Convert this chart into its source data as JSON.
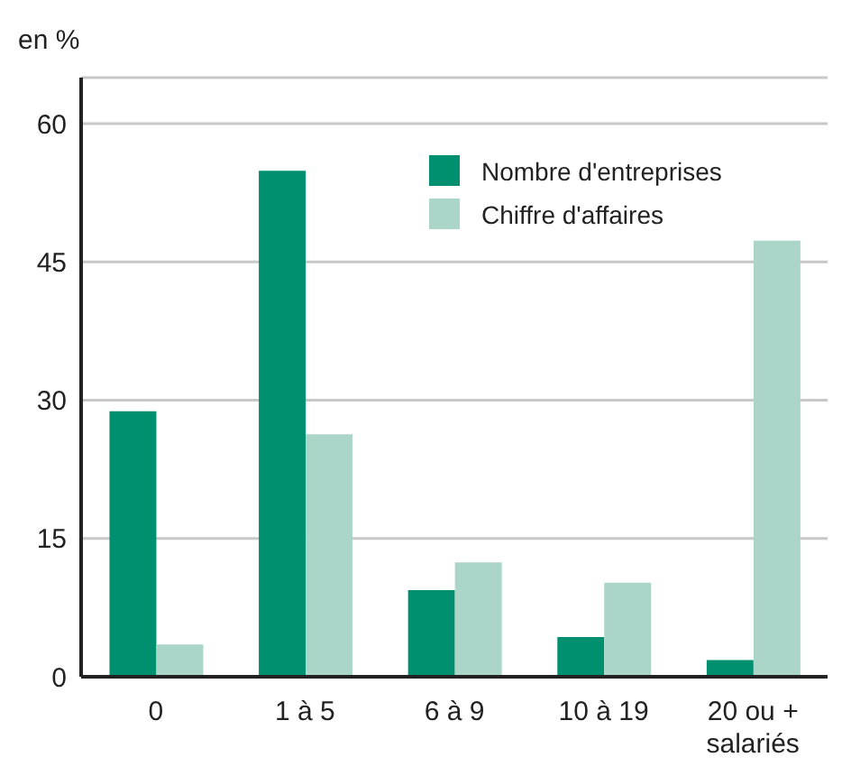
{
  "chart_data": {
    "type": "bar",
    "ylabel": "en %",
    "categories": [
      "0",
      "1 à 5",
      "6 à 9",
      "10 à 19",
      "20 ou +\nsalariés"
    ],
    "series": [
      {
        "name": "Nombre d'entreprises",
        "color": "#009070",
        "values": [
          28.8,
          54.9,
          9.4,
          4.3,
          1.8
        ]
      },
      {
        "name": "Chiffre d'affaires",
        "color": "#acd5c9",
        "values": [
          3.5,
          26.3,
          12.4,
          10.2,
          47.3
        ]
      }
    ],
    "ylim": [
      0,
      65
    ],
    "yticks": [
      0,
      15,
      30,
      45,
      60
    ],
    "grid": "y",
    "legend": "top right"
  }
}
